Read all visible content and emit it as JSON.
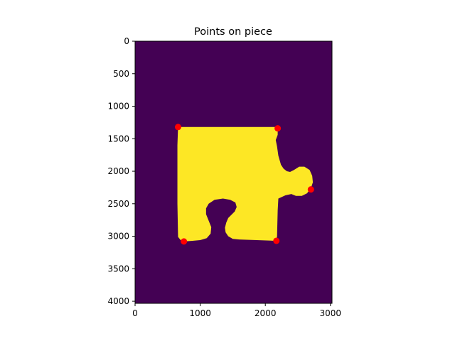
{
  "chart_data": {
    "type": "heatmap",
    "title": "Points on piece",
    "xlabel": "",
    "ylabel": "",
    "xlim": [
      0,
      3024
    ],
    "ylim": [
      4032,
      0
    ],
    "x_ticks": [
      0,
      1000,
      2000,
      3000
    ],
    "y_ticks": [
      0,
      500,
      1000,
      1500,
      2000,
      2500,
      3000,
      3500,
      4000
    ],
    "x_tick_labels": [
      "0",
      "1000",
      "2000",
      "3000"
    ],
    "y_tick_labels": [
      "0",
      "500",
      "1000",
      "1500",
      "2000",
      "2500",
      "3000",
      "3500",
      "4000"
    ],
    "colormap": "viridis",
    "background_color": "#440154",
    "piece_color": "#fde725",
    "marker_color": "#ff0000",
    "grid": false,
    "points": [
      {
        "x": 660,
        "y": 1320
      },
      {
        "x": 2190,
        "y": 1340
      },
      {
        "x": 2700,
        "y": 2280
      },
      {
        "x": 2170,
        "y": 3070
      },
      {
        "x": 750,
        "y": 3080
      }
    ]
  }
}
